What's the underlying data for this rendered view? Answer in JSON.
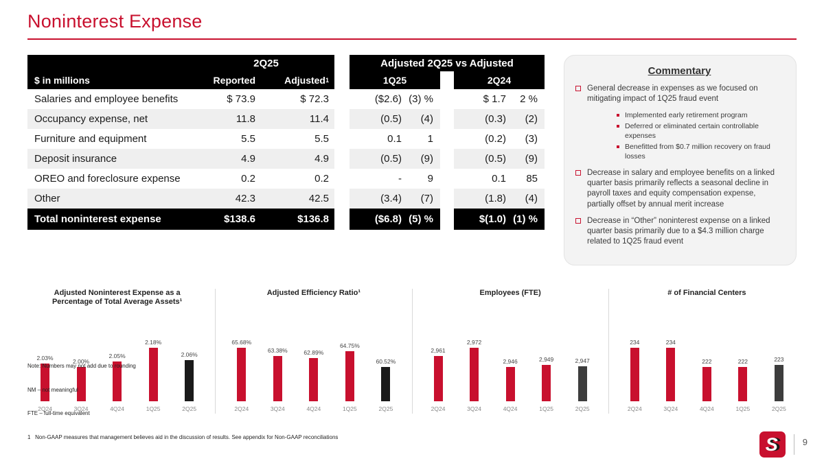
{
  "slide": {
    "title": "Noninterest Expense",
    "page_number": "9"
  },
  "table": {
    "unit_label": "$ in millions",
    "group_2q25": "2Q25",
    "group_vs": "Adjusted 2Q25 vs Adjusted",
    "col_reported": "Reported",
    "col_adjusted": "Adjusted",
    "col_adjusted_sup": "1",
    "col_1q25": "1Q25",
    "col_2q24": "2Q24",
    "rows": [
      {
        "label": "Salaries and employee benefits",
        "reported": "$ 73.9",
        "adjusted": "$ 72.3",
        "vs1_amt": "($2.6)",
        "vs1_pct": "(3) %",
        "vs2_amt": "$ 1.7",
        "vs2_pct": "2 %"
      },
      {
        "label": "Occupancy expense, net",
        "reported": "11.8",
        "adjusted": "11.4",
        "vs1_amt": "(0.5)",
        "vs1_pct": "(4)",
        "vs2_amt": "(0.3)",
        "vs2_pct": "(2)"
      },
      {
        "label": "Furniture and equipment",
        "reported": "5.5",
        "adjusted": "5.5",
        "vs1_amt": "0.1",
        "vs1_pct": "1",
        "vs2_amt": "(0.2)",
        "vs2_pct": "(3)"
      },
      {
        "label": "Deposit insurance",
        "reported": "4.9",
        "adjusted": "4.9",
        "vs1_amt": "(0.5)",
        "vs1_pct": "(9)",
        "vs2_amt": "(0.5)",
        "vs2_pct": "(9)"
      },
      {
        "label": "OREO and foreclosure expense",
        "reported": "0.2",
        "adjusted": "0.2",
        "vs1_amt": "-",
        "vs1_pct": "9",
        "vs2_amt": "0.1",
        "vs2_pct": "85"
      },
      {
        "label": "Other",
        "reported": "42.3",
        "adjusted": "42.5",
        "vs1_amt": "(3.4)",
        "vs1_pct": "(7)",
        "vs2_amt": "(1.8)",
        "vs2_pct": "(4)"
      }
    ],
    "total": {
      "label": "Total noninterest expense",
      "reported": "$138.6",
      "adjusted": "$136.8",
      "vs1_amt": "($6.8)",
      "vs1_pct": "(5) %",
      "vs2_amt": "$(1.0)",
      "vs2_pct": "(1) %"
    }
  },
  "commentary": {
    "title": "Commentary",
    "bullets": [
      {
        "text": "General decrease in expenses as we focused on mitigating impact of 1Q25 fraud event",
        "sub": [
          "Implemented early retirement program",
          "Deferred or eliminated certain controllable expenses",
          "Benefitted from $0.7 million recovery on fraud losses"
        ]
      },
      {
        "text": "Decrease in salary and employee benefits on a linked quarter basis primarily reflects a seasonal decline in payroll taxes and equity compensation expense, partially offset by annual merit increase"
      },
      {
        "text": "Decrease in “Other” noninterest expense on a linked quarter basis primarily due to a $4.3 million charge related to 1Q25 fraud event"
      }
    ]
  },
  "chart_data": [
    {
      "type": "bar",
      "title": "Adjusted Noninterest Expense as a Percentage of Total Average Assets¹",
      "categories": [
        "2Q24",
        "3Q24",
        "4Q24",
        "1Q25",
        "2Q25"
      ],
      "values": [
        2.03,
        2.0,
        2.05,
        2.18,
        2.06
      ],
      "labels": [
        "2.03%",
        "2.00%",
        "2.05%",
        "2.18%",
        "2.06%"
      ],
      "colors": [
        "#C8102E",
        "#C8102E",
        "#C8102E",
        "#C8102E",
        "#1a1a1a"
      ]
    },
    {
      "type": "bar",
      "title": "Adjusted Efficiency Ratio¹",
      "categories": [
        "2Q24",
        "3Q24",
        "4Q24",
        "1Q25",
        "2Q25"
      ],
      "values": [
        65.68,
        63.38,
        62.89,
        64.75,
        60.52
      ],
      "labels": [
        "65.68%",
        "63.38%",
        "62.89%",
        "64.75%",
        "60.52%"
      ],
      "colors": [
        "#C8102E",
        "#C8102E",
        "#C8102E",
        "#C8102E",
        "#1a1a1a"
      ]
    },
    {
      "type": "bar",
      "title": "Employees (FTE)",
      "categories": [
        "2Q24",
        "3Q24",
        "4Q24",
        "1Q25",
        "2Q25"
      ],
      "values": [
        2961,
        2972,
        2946,
        2949,
        2947
      ],
      "labels": [
        "2,961",
        "2,972",
        "2,946",
        "2,949",
        "2,947"
      ],
      "colors": [
        "#C8102E",
        "#C8102E",
        "#C8102E",
        "#C8102E",
        "#3d3d3d"
      ]
    },
    {
      "type": "bar",
      "title": "# of Financial Centers",
      "categories": [
        "2Q24",
        "3Q24",
        "4Q24",
        "1Q25",
        "2Q25"
      ],
      "values": [
        234,
        234,
        222,
        222,
        223
      ],
      "labels": [
        "234",
        "234",
        "222",
        "222",
        "223"
      ],
      "colors": [
        "#C8102E",
        "#C8102E",
        "#C8102E",
        "#C8102E",
        "#3d3d3d"
      ]
    }
  ],
  "footnotes": [
    "Note: Numbers may not add due to rounding",
    "NM – not meaningful",
    "FTE – full-time equivalent",
    "1   Non-GAAP measures that management believes aid in the discussion of results. See appendix for Non-GAAP reconciliations"
  ],
  "logo_letter": "S"
}
